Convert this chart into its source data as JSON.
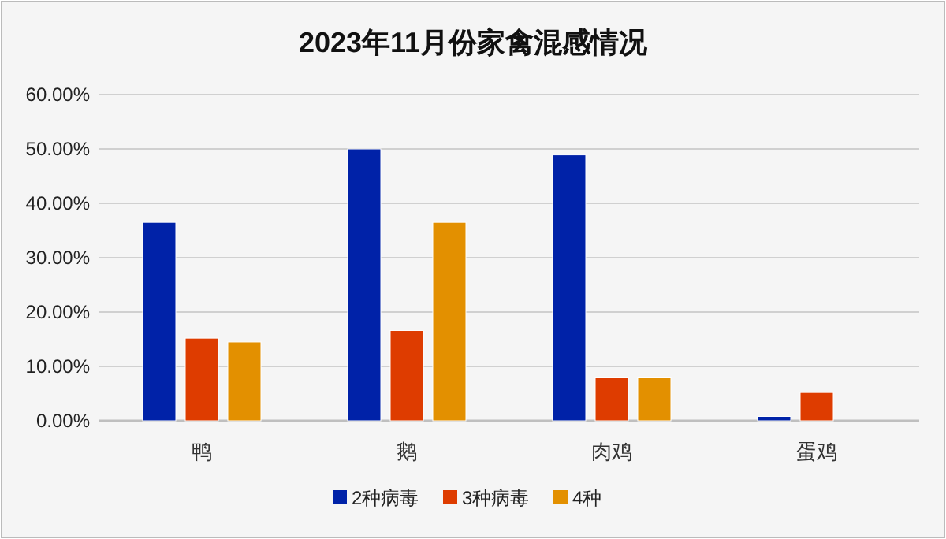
{
  "chart_data": {
    "type": "bar",
    "title": "2023年11月份家禽混感情况",
    "categories": [
      "鸭",
      "鹅",
      "肉鸡",
      "蛋鸡"
    ],
    "series": [
      {
        "name": "2种病毒",
        "color": "#0022a8",
        "values": [
          36.5,
          50,
          48.9,
          0.8
        ]
      },
      {
        "name": "3种病毒",
        "color": "#de3c00",
        "values": [
          15.2,
          16.6,
          7.9,
          5.2
        ]
      },
      {
        "name": "4种",
        "color": "#e39000",
        "values": [
          14.5,
          36.5,
          7.9,
          null
        ]
      }
    ],
    "ylim": [
      0,
      60
    ],
    "yticks": [
      {
        "value": 0,
        "label": "0.00%"
      },
      {
        "value": 10,
        "label": "10.00%"
      },
      {
        "value": 20,
        "label": "20.00%"
      },
      {
        "value": 30,
        "label": "30.00%"
      },
      {
        "value": 40,
        "label": "40.00%"
      },
      {
        "value": 50,
        "label": "50.00%"
      },
      {
        "value": 60,
        "label": "60.00%"
      }
    ],
    "grid": "y",
    "legend": "bottom"
  }
}
